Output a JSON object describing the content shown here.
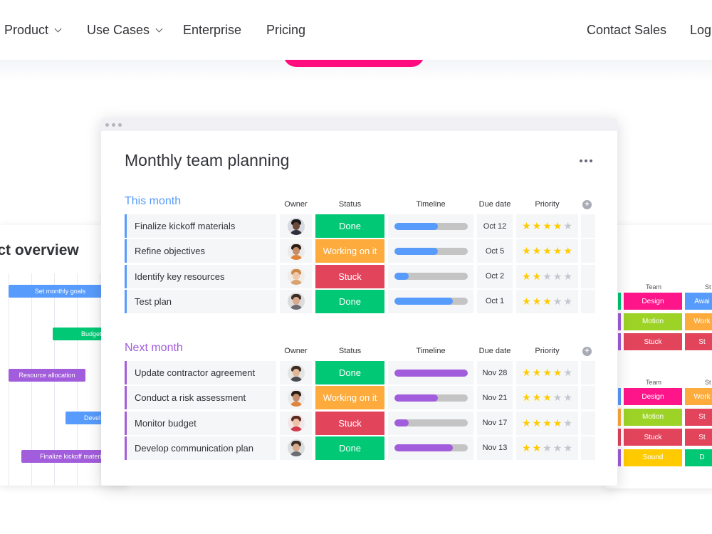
{
  "nav": {
    "left": [
      {
        "label": "Product",
        "dropdown": true
      },
      {
        "label": "Use Cases",
        "dropdown": true
      },
      {
        "label": "Enterprise",
        "dropdown": false
      },
      {
        "label": "Pricing",
        "dropdown": false
      }
    ],
    "right": [
      {
        "label": "Contact Sales"
      },
      {
        "label": "Logi"
      }
    ]
  },
  "colors": {
    "pink": "#ff0c7e",
    "blue_group": "#579bfc",
    "purple_group": "#a25ddc",
    "done": "#00c875",
    "working": "#fdab3d",
    "stuck": "#e2445c",
    "timeline_blue": "#579bfc",
    "timeline_purple": "#a25ddc"
  },
  "left_card": {
    "title": "oject overview",
    "bars": [
      {
        "label": "Set monthly goals",
        "color": "#579bfc"
      },
      {
        "label": "Budget",
        "color": "#00c875"
      },
      {
        "label": "Resource allocation",
        "color": "#a25ddc"
      },
      {
        "label": "Devel",
        "color": "#579bfc"
      },
      {
        "label": "Finalize kickoff materials",
        "color": "#a25ddc"
      }
    ]
  },
  "right_card": {
    "sections": [
      {
        "head_team": "Team",
        "head_status": "St",
        "rows": [
          {
            "team": "Design",
            "team_color": "#ff158a",
            "status": "Awai",
            "status_color": "#579bfc",
            "strip": "#00c875"
          },
          {
            "team": "Motion",
            "team_color": "#9cd326",
            "status": "Work",
            "status_color": "#fdab3d",
            "strip": "#a25ddc"
          },
          {
            "team": "Stuck",
            "team_color": "#e2445c",
            "status": "St",
            "status_color": "#e2445c",
            "strip": "#a25ddc"
          }
        ]
      },
      {
        "head_team": "Team",
        "head_status": "St",
        "rows": [
          {
            "team": "Design",
            "team_color": "#ff158a",
            "status": "Work",
            "status_color": "#fdab3d",
            "strip": "#579bfc"
          },
          {
            "team": "Motion",
            "team_color": "#9cd326",
            "status": "St",
            "status_color": "#e2445c",
            "strip": "#fdab3d"
          },
          {
            "team": "Stuck",
            "team_color": "#e2445c",
            "status": "St",
            "status_color": "#e2445c",
            "strip": "#e2445c"
          },
          {
            "team": "Sound",
            "team_color": "#ffcb00",
            "status": "D",
            "status_color": "#00c875",
            "strip": "#a25ddc"
          }
        ]
      }
    ]
  },
  "board": {
    "title": "Monthly team planning",
    "columns": {
      "owner": "Owner",
      "status": "Status",
      "timeline": "Timeline",
      "due": "Due date",
      "priority": "Priority"
    },
    "groups": [
      {
        "title": "This month",
        "color": "#579bfc",
        "timeline_color": "#579bfc",
        "rows": [
          {
            "task": "Finalize kickoff materials",
            "status": "Done",
            "status_color": "#00c875",
            "progress": 0.6,
            "due": "Oct 12",
            "stars": 4,
            "avatar": {
              "skin": "#6b4a3a",
              "hair": "#1a1a1a",
              "shirt": "#2f2f3a",
              "bg": "#d8d8e0"
            }
          },
          {
            "task": "Refine objectives",
            "status": "Working on it",
            "status_color": "#fdab3d",
            "progress": 0.6,
            "due": "Oct 5",
            "stars": 5,
            "avatar": {
              "skin": "#c58c6a",
              "hair": "#2a1c14",
              "shirt": "#e0843c",
              "bg": "#eaeaea"
            }
          },
          {
            "task": "Identify key resources",
            "status": "Stuck",
            "status_color": "#e2445c",
            "progress": 0.2,
            "due": "Oct 2",
            "stars": 2,
            "avatar": {
              "skin": "#f0c7a8",
              "hair": "#c98a4a",
              "shirt": "#d9a270",
              "bg": "#f1ece6"
            }
          },
          {
            "task": "Test plan",
            "status": "Done",
            "status_color": "#00c875",
            "progress": 0.8,
            "due": "Oct 1",
            "stars": 3,
            "avatar": {
              "skin": "#d8a98a",
              "hair": "#3a2c22",
              "shirt": "#6b6b74",
              "bg": "#dcdcdc"
            }
          }
        ]
      },
      {
        "title": "Next month",
        "color": "#a25ddc",
        "timeline_color": "#a25ddc",
        "rows": [
          {
            "task": "Update contractor agreement",
            "status": "Done",
            "status_color": "#00c875",
            "progress": 1.0,
            "due": "Nov 28",
            "stars": 4,
            "avatar": {
              "skin": "#e2b797",
              "hair": "#3b2b20",
              "shirt": "#4a4a52",
              "bg": "#e4e4e4"
            }
          },
          {
            "task": "Conduct a risk assessment",
            "status": "Working on it",
            "status_color": "#fdab3d",
            "progress": 0.6,
            "due": "Nov 21",
            "stars": 3,
            "avatar": {
              "skin": "#c58c6a",
              "hair": "#2a1c14",
              "shirt": "#e0843c",
              "bg": "#eaeaea"
            }
          },
          {
            "task": "Monitor budget",
            "status": "Stuck",
            "status_color": "#e2445c",
            "progress": 0.2,
            "due": "Nov 17",
            "stars": 4,
            "avatar": {
              "skin": "#efc2a5",
              "hair": "#5a2a22",
              "shirt": "#d23a4a",
              "bg": "#f3e6e6"
            }
          },
          {
            "task": "Develop communication plan",
            "status": "Done",
            "status_color": "#00c875",
            "progress": 0.8,
            "due": "Nov 13",
            "stars": 2,
            "avatar": {
              "skin": "#d8a98a",
              "hair": "#3a2c22",
              "shirt": "#6b6b74",
              "bg": "#dcdcdc"
            }
          }
        ]
      }
    ]
  }
}
